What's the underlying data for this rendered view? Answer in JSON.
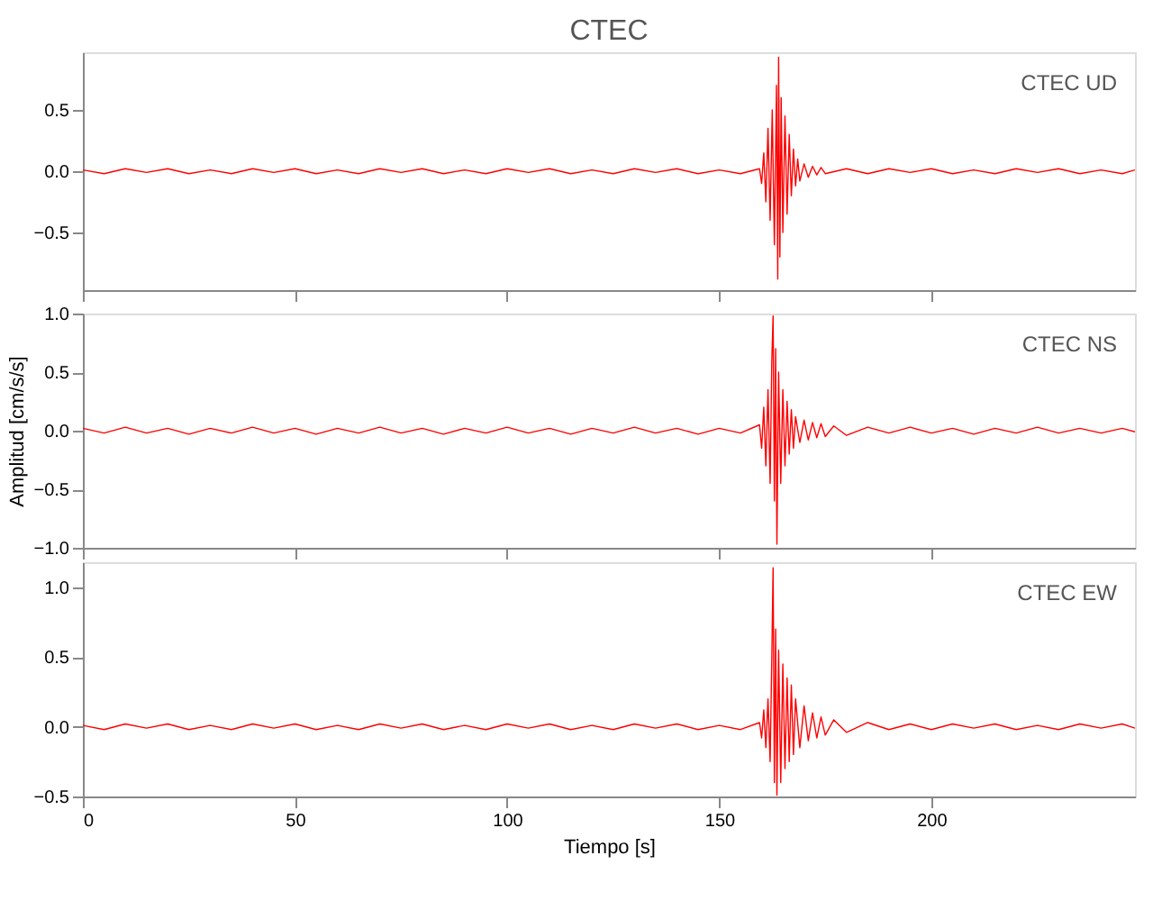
{
  "chart_data": [
    {
      "type": "line",
      "title": "CTEC",
      "annotations": [
        "CTEC   UD"
      ],
      "xlim": [
        0,
        248
      ],
      "xticks": [
        0,
        50,
        100,
        150,
        200
      ],
      "ylim": [
        -0.97,
        0.97
      ],
      "yticks": [
        {
          "value": -0.5,
          "label": "−0.5"
        },
        {
          "value": 0,
          "label": "0.0"
        },
        {
          "value": 0.5,
          "label": "0.5"
        }
      ],
      "tick_labels": "y",
      "grid": false,
      "series": [
        {
          "color": "#ff0000",
          "x": [
            0,
            5,
            10,
            15,
            20,
            25,
            30,
            35,
            40,
            45,
            50,
            55,
            60,
            65,
            70,
            75,
            80,
            85,
            90,
            95,
            100,
            105,
            110,
            115,
            120,
            125,
            130,
            135,
            140,
            145,
            150,
            155,
            159.5,
            160,
            160.5,
            161,
            161.5,
            162,
            162.5,
            163,
            163.5,
            163.8,
            164,
            164.3,
            164.6,
            165,
            165.5,
            166,
            166.5,
            167,
            167.5,
            168,
            168.5,
            169,
            170,
            171,
            172,
            173,
            174,
            175,
            180,
            185,
            190,
            195,
            200,
            205,
            210,
            215,
            220,
            225,
            230,
            235,
            240,
            245,
            248
          ],
          "values": [
            0.01,
            -0.02,
            0.02,
            -0.01,
            0.02,
            -0.02,
            0.01,
            -0.02,
            0.02,
            -0.01,
            0.02,
            -0.02,
            0.01,
            -0.02,
            0.02,
            -0.01,
            0.02,
            -0.02,
            0.01,
            -0.02,
            0.02,
            -0.01,
            0.02,
            -0.02,
            0.01,
            -0.02,
            0.02,
            -0.01,
            0.02,
            -0.02,
            0.01,
            -0.02,
            0.02,
            -0.1,
            0.15,
            -0.25,
            0.35,
            -0.4,
            0.5,
            -0.6,
            0.7,
            -0.88,
            0.93,
            -0.7,
            0.6,
            -0.5,
            0.45,
            -0.35,
            0.3,
            -0.2,
            0.18,
            -0.12,
            0.1,
            -0.08,
            0.06,
            -0.05,
            0.04,
            -0.03,
            0.03,
            -0.02,
            0.02,
            -0.02,
            0.02,
            -0.01,
            0.02,
            -0.02,
            0.01,
            -0.02,
            0.02,
            -0.01,
            0.02,
            -0.02,
            0.01,
            -0.02,
            0.01
          ]
        }
      ]
    },
    {
      "type": "line",
      "ylabel": "Amplitud [cm/s/s]",
      "annotations": [
        "CTEC   NS"
      ],
      "xlim": [
        0,
        248
      ],
      "xticks": [
        0,
        50,
        100,
        150,
        200
      ],
      "ylim": [
        -1.0,
        1.0
      ],
      "yticks": [
        {
          "value": -1,
          "label": "−1.0"
        },
        {
          "value": -0.5,
          "label": "−0.5"
        },
        {
          "value": 0,
          "label": "0.0"
        },
        {
          "value": 0.5,
          "label": "0.5"
        },
        {
          "value": 1,
          "label": "1.0"
        }
      ],
      "tick_labels": "y",
      "grid": false,
      "series": [
        {
          "color": "#ff0000",
          "x": [
            0,
            5,
            10,
            15,
            20,
            25,
            30,
            35,
            40,
            45,
            50,
            55,
            60,
            65,
            70,
            75,
            80,
            85,
            90,
            95,
            100,
            105,
            110,
            115,
            120,
            125,
            130,
            135,
            140,
            145,
            150,
            155,
            159.5,
            160,
            160.5,
            161,
            161.5,
            162,
            162.4,
            162.7,
            163,
            163.3,
            163.6,
            164,
            164.5,
            165,
            165.5,
            166,
            166.5,
            167,
            167.5,
            168,
            169,
            170,
            171,
            172,
            173,
            174,
            175,
            177,
            180,
            185,
            190,
            195,
            200,
            205,
            210,
            215,
            220,
            225,
            230,
            235,
            240,
            245,
            248
          ],
          "values": [
            0.02,
            -0.02,
            0.03,
            -0.02,
            0.02,
            -0.03,
            0.02,
            -0.02,
            0.03,
            -0.02,
            0.02,
            -0.03,
            0.02,
            -0.02,
            0.03,
            -0.02,
            0.02,
            -0.03,
            0.02,
            -0.02,
            0.03,
            -0.02,
            0.02,
            -0.03,
            0.02,
            -0.02,
            0.03,
            -0.02,
            0.02,
            -0.03,
            0.02,
            -0.02,
            0.05,
            -0.15,
            0.2,
            -0.3,
            0.35,
            -0.45,
            0.6,
            0.98,
            -0.6,
            0.7,
            -0.97,
            0.5,
            -0.45,
            0.35,
            -0.3,
            0.25,
            -0.2,
            0.18,
            -0.15,
            0.12,
            -0.1,
            0.09,
            -0.08,
            0.07,
            -0.06,
            0.06,
            -0.05,
            0.04,
            -0.04,
            0.03,
            -0.02,
            0.03,
            -0.02,
            0.02,
            -0.03,
            0.02,
            -0.02,
            0.03,
            -0.02,
            0.02,
            -0.02,
            0.02,
            -0.01
          ]
        }
      ]
    },
    {
      "type": "line",
      "xlabel": "Tiempo [s]",
      "annotations": [
        "CTEC   EW"
      ],
      "xlim": [
        0,
        248
      ],
      "xticks": [
        0,
        50,
        100,
        150,
        200
      ],
      "ylim": [
        -0.5,
        1.18
      ],
      "yticks": [
        {
          "value": -0.5,
          "label": "−0.5"
        },
        {
          "value": 0,
          "label": "0.0"
        },
        {
          "value": 0.5,
          "label": "0.5"
        },
        {
          "value": 1,
          "label": "1.0"
        }
      ],
      "grid": false,
      "series": [
        {
          "color": "#ff0000",
          "x": [
            0,
            5,
            10,
            15,
            20,
            25,
            30,
            35,
            40,
            45,
            50,
            55,
            60,
            65,
            70,
            75,
            80,
            85,
            90,
            95,
            100,
            105,
            110,
            115,
            120,
            125,
            130,
            135,
            140,
            145,
            150,
            155,
            159.5,
            160,
            160.5,
            161,
            161.5,
            162,
            162.4,
            162.7,
            163,
            163.3,
            163.6,
            164,
            164.5,
            165,
            165.5,
            166,
            166.5,
            167,
            167.5,
            168,
            169,
            170,
            171,
            172,
            173,
            174,
            175,
            177,
            180,
            185,
            190,
            195,
            200,
            205,
            210,
            215,
            220,
            225,
            230,
            235,
            240,
            245,
            248
          ],
          "values": [
            0.01,
            -0.02,
            0.02,
            -0.01,
            0.02,
            -0.02,
            0.01,
            -0.02,
            0.02,
            -0.01,
            0.02,
            -0.02,
            0.01,
            -0.02,
            0.02,
            -0.01,
            0.02,
            -0.02,
            0.01,
            -0.02,
            0.02,
            -0.01,
            0.02,
            -0.02,
            0.01,
            -0.02,
            0.02,
            -0.01,
            0.02,
            -0.02,
            0.01,
            -0.02,
            0.03,
            -0.08,
            0.12,
            -0.15,
            0.2,
            -0.25,
            0.5,
            1.14,
            -0.4,
            0.7,
            -0.49,
            0.55,
            -0.4,
            0.45,
            -0.3,
            0.35,
            -0.25,
            0.3,
            -0.2,
            0.2,
            -0.15,
            0.15,
            -0.1,
            0.1,
            -0.08,
            0.07,
            -0.06,
            0.05,
            -0.04,
            0.03,
            -0.02,
            0.02,
            -0.02,
            0.02,
            -0.01,
            0.02,
            -0.02,
            0.01,
            -0.02,
            0.02,
            -0.01,
            0.02,
            -0.01
          ]
        }
      ]
    }
  ]
}
